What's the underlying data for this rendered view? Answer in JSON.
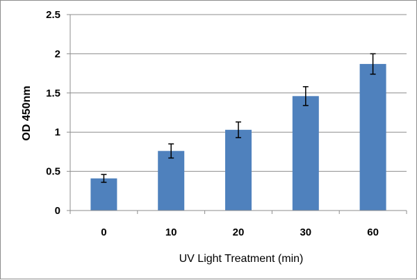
{
  "chart_data": {
    "type": "bar",
    "categories": [
      "0",
      "10",
      "20",
      "30",
      "60"
    ],
    "values": [
      0.41,
      0.76,
      1.03,
      1.46,
      1.87
    ],
    "error": [
      0.05,
      0.09,
      0.1,
      0.12,
      0.13
    ],
    "xlabel": "UV Light Treatment (min)",
    "ylabel": "OD 450nm",
    "ylim": [
      0,
      2.5
    ],
    "yticks": [
      "0",
      "0.5",
      "1",
      "1.5",
      "2",
      "2.5"
    ],
    "ytick_values": [
      0,
      0.5,
      1,
      1.5,
      2,
      2.5
    ],
    "grid": true,
    "legend": "none",
    "colors": {
      "bar": "#4f81bd",
      "grid": "#8c8c8c",
      "axis": "#8c8c8c",
      "error_bar": "#000000"
    }
  }
}
